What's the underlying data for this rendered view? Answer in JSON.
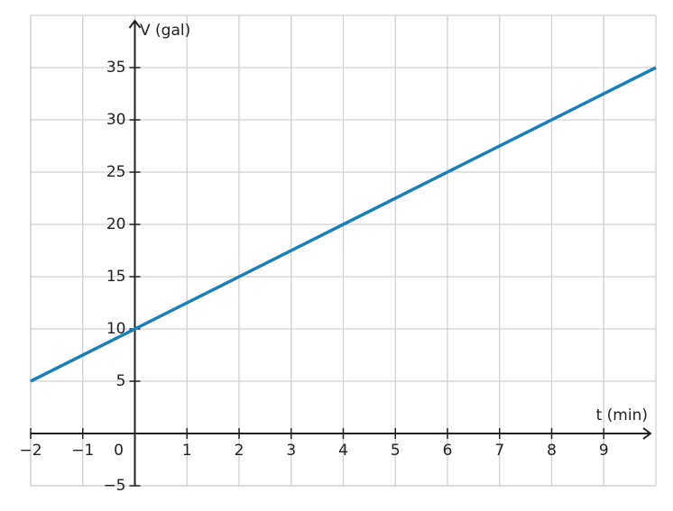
{
  "chart_data": {
    "type": "line",
    "x_label": "t (min)",
    "y_label": "V (gal)",
    "x": [
      -2,
      10
    ],
    "series": [
      {
        "name": "V",
        "color": "#1a7fb5",
        "values": [
          5,
          35
        ]
      }
    ],
    "xlim": [
      -2,
      10
    ],
    "ylim": [
      -5,
      40
    ],
    "xticks": [
      {
        "value": -2,
        "label": "−2"
      },
      {
        "value": -1,
        "label": "−1"
      },
      0,
      1,
      2,
      3,
      4,
      5,
      6,
      7,
      8,
      9
    ],
    "yticks": [
      {
        "value": -5,
        "label": "−5"
      },
      5,
      10,
      15,
      20,
      25,
      30,
      35
    ],
    "grid": true
  }
}
